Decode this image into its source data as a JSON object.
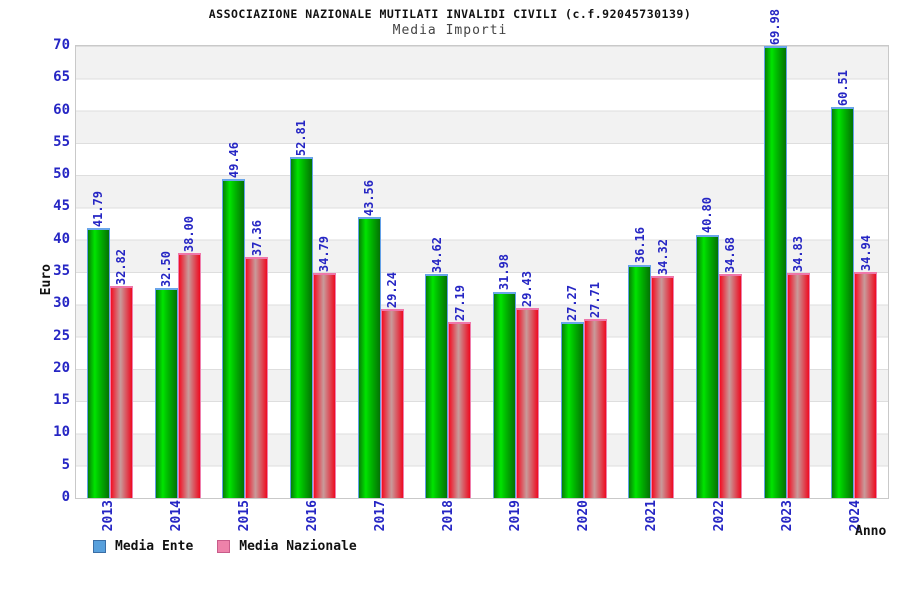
{
  "title": "ASSOCIAZIONE NAZIONALE MUTILATI INVALIDI CIVILI (c.f.92045730139)",
  "subtitle": "Media Importi",
  "y_axis": {
    "label": "Euro",
    "ticks": [
      0,
      5,
      10,
      15,
      20,
      25,
      30,
      35,
      40,
      45,
      50,
      55,
      60,
      65,
      70
    ],
    "tick_color": "#2626c4"
  },
  "x_axis": {
    "label": "Anno",
    "tick_color": "#2626c4"
  },
  "legend": {
    "items": [
      {
        "label": "Media Ente",
        "swatch_color": "#58a0dc"
      },
      {
        "label": "Media Nazionale",
        "swatch_color": "#ee82aa"
      }
    ]
  },
  "colors": {
    "ente_bar": "#00e400",
    "ente_bar_border": "#63a0e8",
    "naz_bar": "#ee0b20",
    "naz_bar_border": "#ef7fae",
    "band_gray": "#f2f2f2",
    "label_blue": "#2626c4"
  },
  "chart_data": {
    "type": "bar",
    "title": "ASSOCIAZIONE NAZIONALE MUTILATI INVALIDI CIVILI (c.f.92045730139)",
    "subtitle": "Media Importi",
    "xlabel": "Anno",
    "ylabel": "Euro",
    "ylim": [
      0,
      70
    ],
    "ytick_step": 5,
    "grid": "horizontal-bands",
    "legend_position": "bottom-left",
    "categories": [
      "2013",
      "2014",
      "2015",
      "2016",
      "2017",
      "2018",
      "2019",
      "2020",
      "2021",
      "2022",
      "2023",
      "2024"
    ],
    "series": [
      {
        "name": "Media Ente",
        "values": [
          41.79,
          32.5,
          49.46,
          52.81,
          43.56,
          34.62,
          31.98,
          27.27,
          36.16,
          40.8,
          69.98,
          60.51
        ]
      },
      {
        "name": "Media Nazionale",
        "values": [
          32.82,
          38.0,
          37.36,
          34.79,
          29.24,
          27.19,
          29.43,
          27.71,
          34.32,
          34.68,
          34.83,
          34.94
        ]
      }
    ]
  }
}
